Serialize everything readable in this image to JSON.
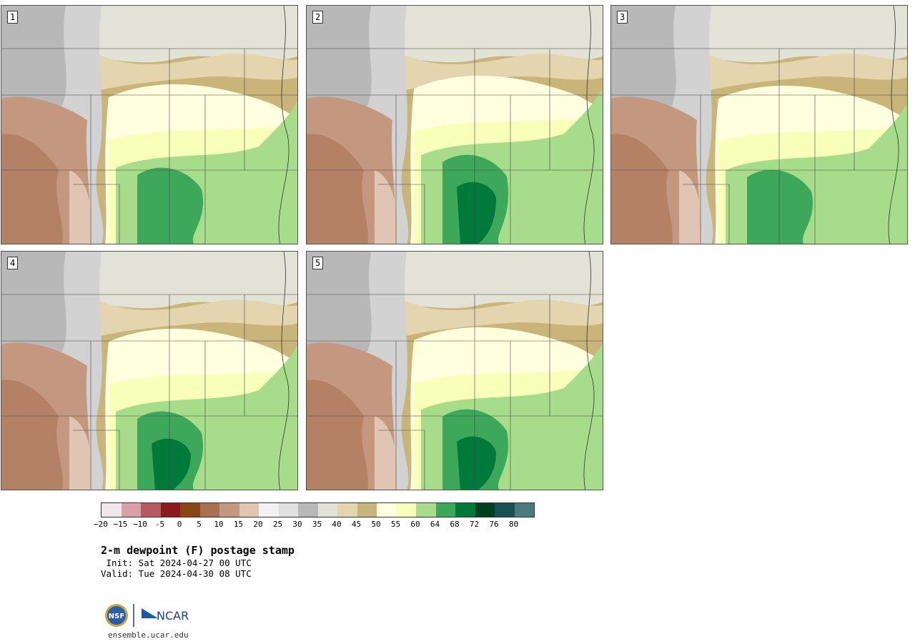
{
  "panels": [
    {
      "label": "1",
      "moist": 0.55
    },
    {
      "label": "2",
      "moist": 0.85
    },
    {
      "label": "3",
      "moist": 0.5
    },
    {
      "label": "4",
      "moist": 0.6
    },
    {
      "label": "5",
      "moist": 0.65
    }
  ],
  "colorbar": {
    "colors": [
      "#f3e6e8",
      "#d9a0a8",
      "#b55a60",
      "#8b1a1e",
      "#8b4513",
      "#a87050",
      "#c4987e",
      "#e0c5b2",
      "#f2f2f2",
      "#e0e0e0",
      "#b8b8b8",
      "#e2e2d6",
      "#e5d5ae",
      "#c9b47a",
      "#ffffe0",
      "#f8ffb8",
      "#a6dc8a",
      "#3ea85a",
      "#007a3a",
      "#00401e",
      "#1a5050",
      "#4a7a7e"
    ],
    "ticks": [
      "−20",
      "−15",
      "−10",
      "-5",
      "0",
      "5",
      "10",
      "15",
      "20",
      "25",
      "30",
      "35",
      "40",
      "45",
      "50",
      "55",
      "60",
      "64",
      "68",
      "72",
      "76",
      "80"
    ]
  },
  "title": "2-m dewpoint (F) postage stamp",
  "init": " Init: Sat 2024-04-27 00 UTC",
  "valid": "Valid: Tue 2024-04-30 08 UTC",
  "logo": {
    "nsf": "NSF",
    "ncar": "NCAR"
  },
  "site": "ensemble.ucar.edu"
}
